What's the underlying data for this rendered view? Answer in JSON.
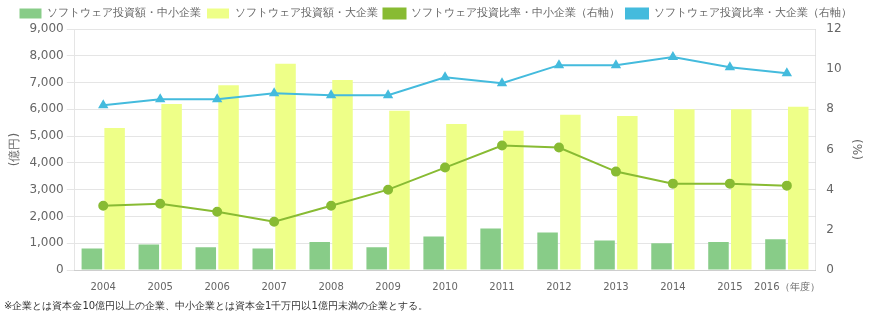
{
  "chart_data": {
    "type": "bar",
    "categories": [
      "2004",
      "2005",
      "2006",
      "2007",
      "2008",
      "2009",
      "2010",
      "2011",
      "2012",
      "2013",
      "2014",
      "2015",
      "2016（年度）"
    ],
    "series": [
      {
        "name": "ソフトウェア投資額・中小企業",
        "type": "bar",
        "color": "#88cc88",
        "values": [
          800,
          950,
          850,
          800,
          1050,
          850,
          1250,
          1550,
          1400,
          1100,
          1000,
          1050,
          1150
        ]
      },
      {
        "name": "ソフトウェア投資額・大企業",
        "type": "bar",
        "color": "#eeff88",
        "values": [
          5300,
          6200,
          6900,
          7700,
          7100,
          5950,
          5450,
          5200,
          5800,
          5750,
          6000,
          6000,
          6100
        ]
      },
      {
        "name": "ソフトウェア投資比率・中小企業（右軸）",
        "type": "line",
        "axis": "y2",
        "color": "#88bb33",
        "marker": "circle",
        "values": [
          3.2,
          3.3,
          2.9,
          2.4,
          3.2,
          4.0,
          5.1,
          6.2,
          6.1,
          4.9,
          4.3,
          4.3,
          4.2
        ]
      },
      {
        "name": "ソフトウェア投資比率・大企業（右軸）",
        "type": "line",
        "axis": "y2",
        "color": "#44bbdd",
        "marker": "triangle",
        "values": [
          8.2,
          8.5,
          8.5,
          8.8,
          8.7,
          8.7,
          9.6,
          9.3,
          10.2,
          10.2,
          10.6,
          10.1,
          9.8
        ]
      }
    ],
    "ylabel": "(億円)",
    "y2label": "(%)",
    "ylim": [
      0,
      9000
    ],
    "yticks": [
      0,
      {
        "value": 1000,
        "label": "1,000"
      },
      {
        "value": 2000,
        "label": "2,000"
      },
      {
        "value": 3000,
        "label": "3,000"
      },
      {
        "value": 4000,
        "label": "4,000"
      },
      {
        "value": 5000,
        "label": "5,000"
      },
      {
        "value": 6000,
        "label": "6,000"
      },
      {
        "value": 7000,
        "label": "7,000"
      },
      {
        "value": 8000,
        "label": "8,000"
      },
      {
        "value": 9000,
        "label": "9,000"
      }
    ],
    "y2lim": [
      0,
      12
    ],
    "y2ticks": [
      0,
      2,
      4,
      6,
      8,
      10,
      12
    ],
    "grid": true,
    "legend": "top",
    "annotations": [
      "※企業とは資本金10億円以上の企業、中小企業とは資本金1千万円以1億円未満の企業とする。"
    ]
  }
}
